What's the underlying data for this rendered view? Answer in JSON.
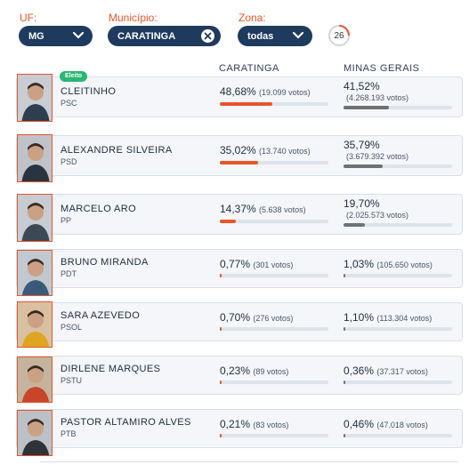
{
  "filters": {
    "uf": {
      "label": "UF:",
      "value": "MG"
    },
    "municipio": {
      "label": "Município:",
      "value": "CARATINGA"
    },
    "zona": {
      "label": "Zona:",
      "value": "todas"
    },
    "progress": {
      "value": "26"
    }
  },
  "columns": {
    "local": "CARATINGA",
    "state": "MINAS GERAIS"
  },
  "badge_label": "Eleito",
  "candidates": [
    {
      "name": "CLEITINHO",
      "party": "PSC",
      "local_pct": "48,68%",
      "local_votes": "(19.099 votos)",
      "local_share": 48.68,
      "state_pct": "41,52%",
      "state_votes": "(4.268.193 votos)",
      "state_share": 41.52
    },
    {
      "name": "ALEXANDRE SILVEIRA",
      "party": "PSD",
      "local_pct": "35,02%",
      "local_votes": "(13.740 votos)",
      "local_share": 35.02,
      "state_pct": "35,79%",
      "state_votes": "(3.679.392 votos)",
      "state_share": 35.79
    },
    {
      "name": "MARCELO ARO",
      "party": "PP",
      "local_pct": "14,37%",
      "local_votes": "(5.638 votos)",
      "local_share": 14.37,
      "state_pct": "19,70%",
      "state_votes": "(2.025.573 votos)",
      "state_share": 19.7
    },
    {
      "name": "BRUNO MIRANDA",
      "party": "PDT",
      "local_pct": "0,77%",
      "local_votes": "(301 votos)",
      "local_share": 0.77,
      "state_pct": "1,03%",
      "state_votes": "(105.650 votos)",
      "state_share": 1.03
    },
    {
      "name": "SARA AZEVEDO",
      "party": "PSOL",
      "local_pct": "0,70%",
      "local_votes": "(276 votos)",
      "local_share": 0.7,
      "state_pct": "1,10%",
      "state_votes": "(113.304 votos)",
      "state_share": 1.1
    },
    {
      "name": "DIRLENE MARQUES",
      "party": "PSTU",
      "local_pct": "0,23%",
      "local_votes": "(89 votos)",
      "local_share": 0.23,
      "state_pct": "0,36%",
      "state_votes": "(37.317 votos)",
      "state_share": 0.36
    },
    {
      "name": "PASTOR ALTAMIRO ALVES",
      "party": "PTB",
      "local_pct": "0,21%",
      "local_votes": "(83 votos)",
      "local_share": 0.21,
      "state_pct": "0,46%",
      "state_votes": "(47.018 votos)",
      "state_share": 0.46
    }
  ],
  "colors": {
    "accent": "#e8552a",
    "navy": "#1e3a5f",
    "elected": "#2bb673",
    "state_bar": "#6d7278"
  }
}
